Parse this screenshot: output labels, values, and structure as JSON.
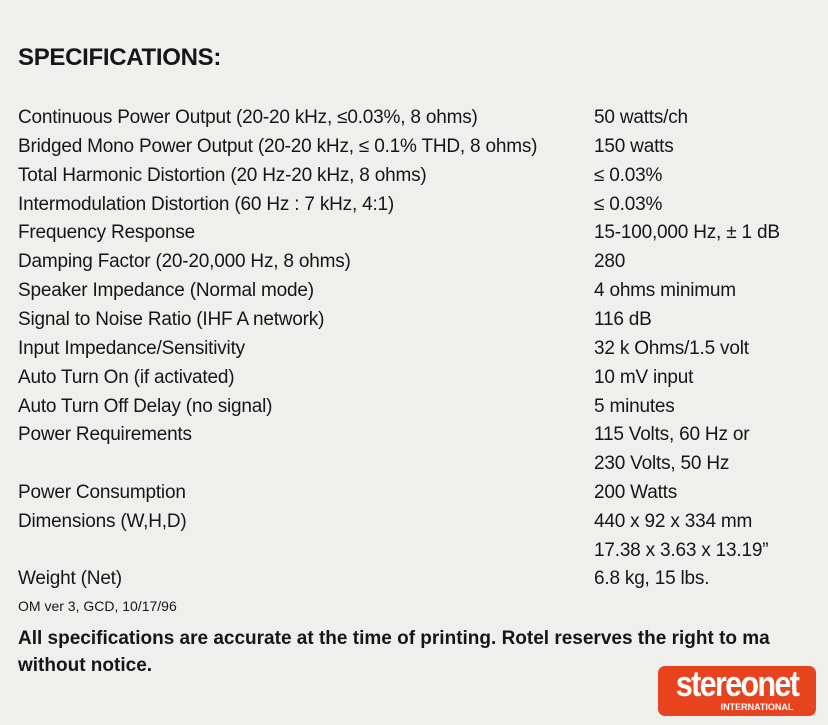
{
  "title": "SPECIFICATIONS:",
  "specs": [
    {
      "label": "Continuous Power Output (20-20 kHz, ≤0.03%, 8 ohms)",
      "value": "50 watts/ch"
    },
    {
      "label": "Bridged Mono Power Output (20-20 kHz, ≤ 0.1% THD, 8 ohms)",
      "value": "150 watts"
    },
    {
      "label": "Total Harmonic Distortion (20 Hz-20  kHz, 8 ohms)",
      "value": "≤ 0.03%"
    },
    {
      "label": "Intermodulation Distortion (60 Hz : 7 kHz, 4:1)",
      "value": "≤ 0.03%"
    },
    {
      "label": "Frequency Response",
      "value": "15-100,000 Hz, ± 1 dB"
    },
    {
      "label": "Damping Factor (20-20,000 Hz, 8 ohms)",
      "value": "280"
    },
    {
      "label": "Speaker Impedance (Normal mode)",
      "value": "4 ohms minimum"
    },
    {
      "label": "Signal to Noise Ratio (IHF A network)",
      "value": "116 dB"
    },
    {
      "label": "Input Impedance/Sensitivity",
      "value": "32 k Ohms/1.5 volt"
    },
    {
      "label": "Auto Turn On (if activated)",
      "value": "10 mV input"
    },
    {
      "label": "Auto Turn Off Delay (no signal)",
      "value": "5 minutes"
    },
    {
      "label": "Power Requirements",
      "value": "115 Volts, 60 Hz or"
    },
    {
      "label": "",
      "value": "230 Volts, 50 Hz"
    },
    {
      "label": "Power Consumption",
      "value": "200 Watts"
    },
    {
      "label": "Dimensions (W,H,D)",
      "value": "440  x 92  x 334 mm"
    },
    {
      "label": "",
      "value": "17.38 x 3.63 x 13.19”"
    },
    {
      "label": "Weight (Net)",
      "value": "6.8 kg, 15 lbs."
    }
  ],
  "version": "OM ver 3, GCD, 10/17/96",
  "note_line1": "All specifications are accurate at the time of printing. Rotel reserves the right to ma",
  "note_line2": "without notice.",
  "logo": {
    "text": "stereonet",
    "sub": "INTERNATIONAL",
    "color": "#e8431f"
  }
}
